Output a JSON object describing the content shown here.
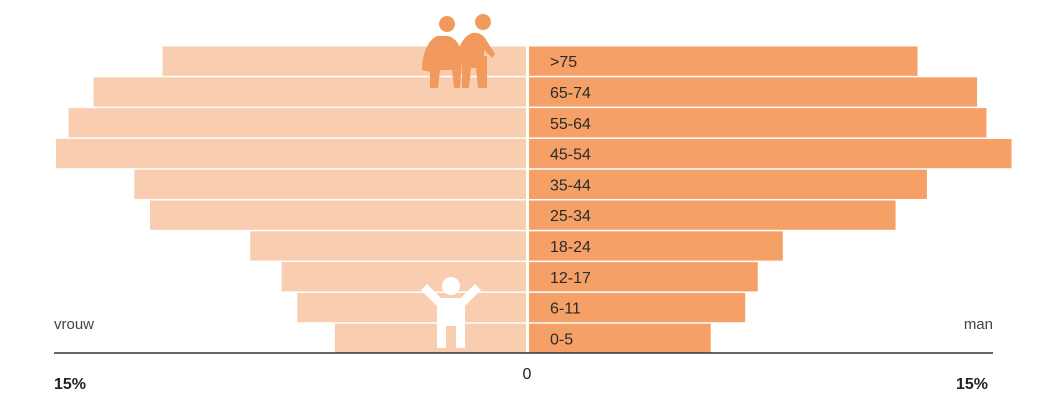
{
  "chart_data": {
    "type": "bar",
    "orientation": "horizontal",
    "categories": [
      "0-5",
      "6-11",
      "12-17",
      "18-24",
      "25-34",
      "35-44",
      "45-54",
      "55-64",
      "65-74",
      ">75"
    ],
    "series": [
      {
        "name": "vrouw",
        "values": [
          6.1,
          7.3,
          7.8,
          8.8,
          12.0,
          12.5,
          15.0,
          14.6,
          13.8,
          11.6
        ],
        "color": "#f9cdaf"
      },
      {
        "name": "man",
        "values": [
          5.8,
          6.9,
          7.3,
          8.1,
          11.7,
          12.7,
          15.4,
          14.6,
          14.3,
          12.4
        ],
        "color": "#f5a066"
      }
    ],
    "xlabel_left": "vrouw",
    "xlabel_right": "man",
    "xlim": [
      -15,
      15
    ],
    "tick_labels": {
      "left": "15%",
      "center": "0",
      "right": "15%"
    },
    "grid": false,
    "icons": {
      "top": "elderly-couple-icon",
      "bottom": "child-icon"
    },
    "colors": {
      "axis": "#333333",
      "elderly_icon": "#f29a5e",
      "child_icon": "#ffffff"
    }
  }
}
